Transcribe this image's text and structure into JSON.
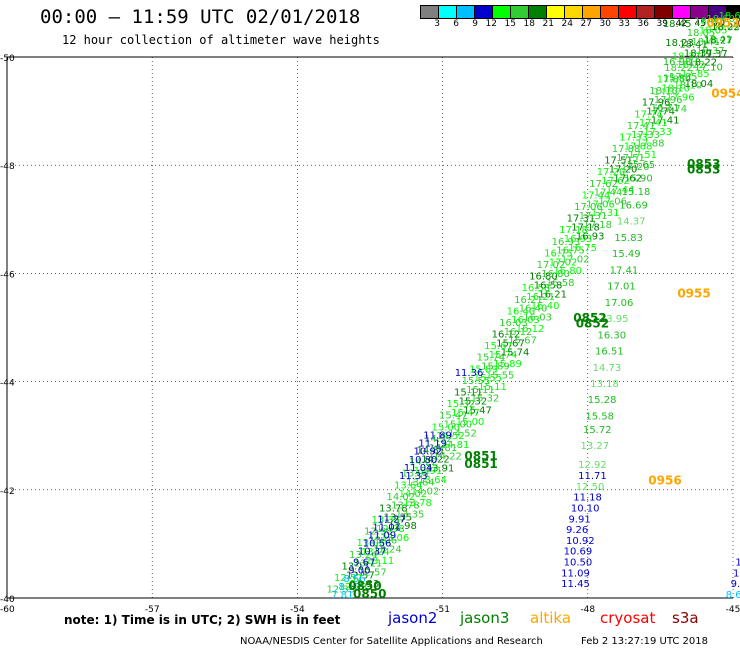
{
  "header": {
    "title": "00:00 – 11:59 UTC 02/01/2018",
    "subtitle": "12 hour collection of altimeter wave heights"
  },
  "legend": {
    "colors": [
      "#808080",
      "#00ffff",
      "#00bfff",
      "#0000cd",
      "#00ff00",
      "#32cd32",
      "#008000",
      "#ffff00",
      "#ffd700",
      "#ffa500",
      "#ff4500",
      "#ff0000",
      "#b22222",
      "#800000",
      "#ff00ff",
      "#8b008b",
      "#4b0082",
      "#000000"
    ],
    "labels": [
      "3",
      "6",
      "9",
      "12",
      "15",
      "18",
      "21",
      "24",
      "27",
      "30",
      "33",
      "36",
      "39",
      "42",
      "45",
      "70",
      "(ft)"
    ]
  },
  "chart_data": {
    "type": "scatter",
    "xlim": [
      -60,
      -45
    ],
    "ylim": [
      -50,
      -40
    ],
    "x_ticks": [
      -57,
      -54,
      -51,
      -48,
      -45
    ],
    "y_ticks": [
      -40,
      -42,
      -44,
      -46,
      -48,
      -50
    ],
    "x_tick_labels": [
      "-57",
      "-54",
      "-51",
      "-48",
      "-45"
    ],
    "y_tick_labels": [
      "-40",
      "-42",
      "-44",
      "-46",
      "-48",
      "-50"
    ],
    "corner_label": "-60",
    "grid": "dotted",
    "series": [
      {
        "name": "jason2",
        "color_key": "track-a",
        "points": [
          {
            "lon": -53.3,
            "lat": -40.0,
            "v": "7.81"
          },
          {
            "lon": -53.15,
            "lat": -40.15,
            "v": "8.10"
          },
          {
            "lon": -53.05,
            "lat": -40.3,
            "v": "8.56"
          },
          {
            "lon": -52.95,
            "lat": -40.45,
            "v": "9.00"
          },
          {
            "lon": -52.85,
            "lat": -40.6,
            "v": "9.67"
          },
          {
            "lon": -52.75,
            "lat": -40.8,
            "v": "10.37"
          },
          {
            "lon": -52.65,
            "lat": -40.95,
            "v": "10.56"
          },
          {
            "lon": -52.55,
            "lat": -41.1,
            "v": "11.09"
          },
          {
            "lon": -52.45,
            "lat": -41.25,
            "v": "11.01"
          },
          {
            "lon": -52.35,
            "lat": -41.4,
            "v": "11.27"
          },
          {
            "lon": -51.9,
            "lat": -42.2,
            "v": "11.33"
          },
          {
            "lon": -51.8,
            "lat": -42.35,
            "v": "11.04"
          },
          {
            "lon": -51.7,
            "lat": -42.5,
            "v": "10.80"
          },
          {
            "lon": -51.6,
            "lat": -42.65,
            "v": "10.92"
          },
          {
            "lon": -51.5,
            "lat": -42.8,
            "v": "11.19"
          },
          {
            "lon": -51.4,
            "lat": -42.95,
            "v": "11.89"
          },
          {
            "lon": -50.75,
            "lat": -44.1,
            "v": "11.36"
          },
          {
            "lon": -48.55,
            "lat": -40.2,
            "v": "11.45"
          },
          {
            "lon": -48.55,
            "lat": -40.4,
            "v": "11.09"
          },
          {
            "lon": -48.5,
            "lat": -40.6,
            "v": "10.50"
          },
          {
            "lon": -48.5,
            "lat": -40.8,
            "v": "10.69"
          },
          {
            "lon": -48.45,
            "lat": -41.0,
            "v": "10.92"
          },
          {
            "lon": -48.45,
            "lat": -41.2,
            "v": "9.26"
          },
          {
            "lon": -48.4,
            "lat": -41.4,
            "v": "9.91"
          },
          {
            "lon": -48.35,
            "lat": -41.6,
            "v": "10.10"
          },
          {
            "lon": -48.3,
            "lat": -41.8,
            "v": "11.18"
          },
          {
            "lon": -48.2,
            "lat": -42.2,
            "v": "11.71"
          },
          {
            "lon": -45.15,
            "lat": -40.0,
            "v": "8.60"
          },
          {
            "lon": -45.05,
            "lat": -40.2,
            "v": "9.16"
          },
          {
            "lon": -45.0,
            "lat": -40.4,
            "v": "10.4"
          },
          {
            "lon": -44.95,
            "lat": -40.6,
            "v": "10"
          }
        ]
      },
      {
        "name": "jason3",
        "points": [
          {
            "lon": -48.25,
            "lat": -42.0,
            "v": "12.50"
          },
          {
            "lon": -48.2,
            "lat": -42.4,
            "v": "12.92"
          },
          {
            "lon": -48.15,
            "lat": -42.75,
            "v": "13.27"
          },
          {
            "lon": -48.1,
            "lat": -43.05,
            "v": "15.72"
          },
          {
            "lon": -48.05,
            "lat": -43.3,
            "v": "15.58"
          },
          {
            "lon": -48.0,
            "lat": -43.6,
            "v": "15.28"
          },
          {
            "lon": -47.95,
            "lat": -43.9,
            "v": "13.18"
          },
          {
            "lon": -47.9,
            "lat": -44.2,
            "v": "14.73"
          },
          {
            "lon": -47.85,
            "lat": -44.5,
            "v": "16.51"
          },
          {
            "lon": -47.8,
            "lat": -44.8,
            "v": "16.30"
          },
          {
            "lon": -47.75,
            "lat": -45.1,
            "v": "13.95"
          },
          {
            "lon": -47.65,
            "lat": -45.4,
            "v": "17.06"
          },
          {
            "lon": -47.6,
            "lat": -45.7,
            "v": "17.01"
          },
          {
            "lon": -47.55,
            "lat": -46.0,
            "v": "17.41"
          },
          {
            "lon": -47.5,
            "lat": -46.3,
            "v": "15.49"
          },
          {
            "lon": -47.45,
            "lat": -46.6,
            "v": "15.83"
          },
          {
            "lon": -47.4,
            "lat": -46.9,
            "v": "14.37"
          },
          {
            "lon": -47.35,
            "lat": -47.2,
            "v": "16.69"
          },
          {
            "lon": -47.3,
            "lat": -47.45,
            "v": "15.18"
          },
          {
            "lon": -47.25,
            "lat": -47.7,
            "v": "15.90"
          },
          {
            "lon": -47.2,
            "lat": -47.95,
            "v": "15.65"
          },
          {
            "lon": -46.7,
            "lat": -49.0,
            "v": "16.71"
          },
          {
            "lon": -46.65,
            "lat": -49.3,
            "v": "14.77"
          },
          {
            "lon": -46.45,
            "lat": -49.55,
            "v": "15.84"
          },
          {
            "lon": -46.45,
            "lat": -49.85,
            "v": "16.98"
          },
          {
            "lon": -46.4,
            "lat": -50.2,
            "v": "18.23"
          },
          {
            "lon": -46.45,
            "lat": -50.55,
            "v": "18.45"
          },
          {
            "lon": -46.0,
            "lat": -49.45,
            "v": "18.04"
          },
          {
            "lon": -45.8,
            "lat": -49.75,
            "v": "17.10"
          },
          {
            "lon": -45.7,
            "lat": -50.0,
            "v": "19.37"
          },
          {
            "lon": -45.6,
            "lat": -50.25,
            "v": "18.27"
          },
          {
            "lon": -45.45,
            "lat": -50.5,
            "v": "18.22"
          }
        ]
      },
      {
        "name": "altika",
        "points": []
      },
      {
        "name": "cryosat",
        "points": []
      },
      {
        "name": "s3a",
        "points": []
      }
    ],
    "band": {
      "values": [
        "12.33",
        "12.57",
        "13.11",
        "13.24",
        "13.06",
        "12.98",
        "13.35",
        "13.78",
        "14.02",
        "13.64",
        "13.91",
        "14.22",
        "14.81",
        "14.52",
        "15.00",
        "15.47",
        "15.32",
        "15.11",
        "15.55",
        "15.89",
        "15.74",
        "15.67",
        "16.12",
        "16.03",
        "16.40",
        "16.21",
        "16.58",
        "16.80",
        "17.02",
        "16.75",
        "16.93",
        "17.18",
        "17.31",
        "17.06",
        "17.44",
        "17.62",
        "17.20",
        "17.51",
        "17.88",
        "17.33",
        "17.41",
        "17.74",
        "17.96",
        "18.10",
        "17.85",
        "18.22",
        "18.37",
        "18.41",
        "18.05",
        "18.60"
      ]
    },
    "time_tags": [
      {
        "lon": -52.85,
        "lat": -40.0,
        "t": "0850",
        "series": "jason3"
      },
      {
        "lon": -52.95,
        "lat": -40.15,
        "t": "0850",
        "series": "jason3"
      },
      {
        "lon": -50.55,
        "lat": -42.4,
        "t": "0851",
        "series": "jason3"
      },
      {
        "lon": -50.55,
        "lat": -42.55,
        "t": "0851",
        "series": "jason3"
      },
      {
        "lon": -48.25,
        "lat": -45.0,
        "t": "0852",
        "series": "jason3"
      },
      {
        "lon": -48.3,
        "lat": -45.1,
        "t": "0852",
        "series": "jason3"
      },
      {
        "lon": -45.95,
        "lat": -47.85,
        "t": "0853",
        "series": "jason3"
      },
      {
        "lon": -45.95,
        "lat": -47.95,
        "t": "0853",
        "series": "jason3"
      },
      {
        "lon": -46.75,
        "lat": -42.1,
        "t": "0956",
        "series": "altika"
      },
      {
        "lon": -46.15,
        "lat": -45.55,
        "t": "0955",
        "series": "altika"
      },
      {
        "lon": -45.45,
        "lat": -49.25,
        "t": "0954",
        "series": "altika"
      },
      {
        "lon": -45.55,
        "lat": -50.55,
        "t": "0953",
        "series": "altika"
      }
    ]
  },
  "footer": {
    "note": "note: 1) Time is in UTC; 2) SWH is in feet",
    "satellites": [
      {
        "label": "jason2",
        "color": "#0000cd"
      },
      {
        "label": "jason3",
        "color": "#008000"
      },
      {
        "label": "altika",
        "color": "#ffa500"
      },
      {
        "label": "cryosat",
        "color": "#ff0000"
      },
      {
        "label": "s3a",
        "color": "#8b0000"
      }
    ],
    "credit": "NOAA/NESDIS Center for Satellite Applications and Research",
    "timestamp": "Feb  2 13:27:19 UTC 2018"
  }
}
